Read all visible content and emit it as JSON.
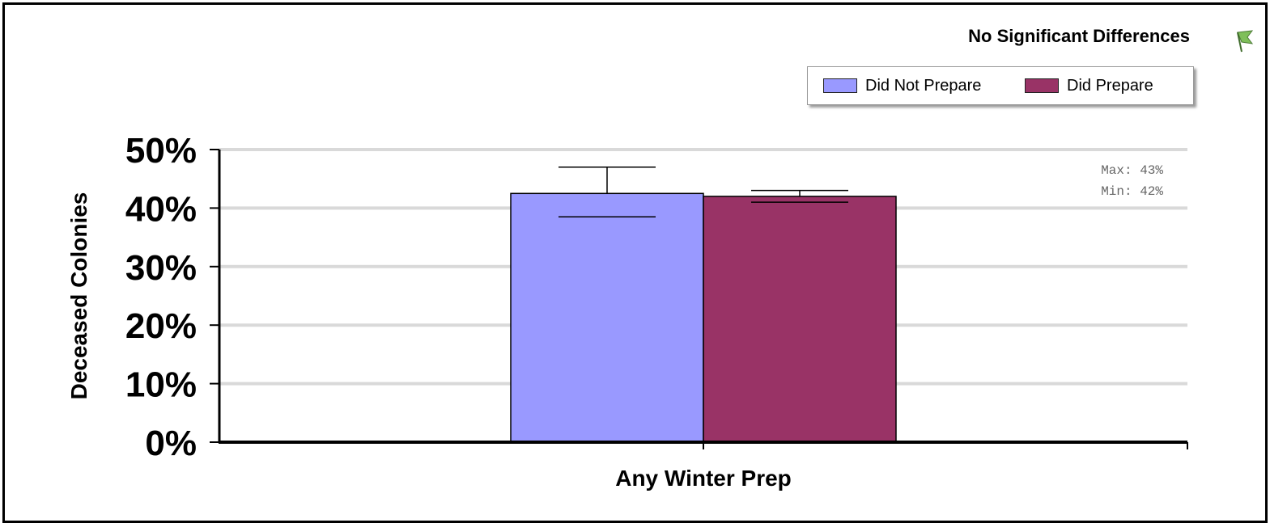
{
  "chart_data": {
    "type": "bar",
    "title": "",
    "annotation": "No Significant Differences",
    "xlabel": "",
    "ylabel": "Deceased Colonies",
    "categories": [
      "Any Winter Prep"
    ],
    "yticks": [
      "0%",
      "10%",
      "20%",
      "30%",
      "40%",
      "50%"
    ],
    "ylim": [
      0,
      50
    ],
    "grid": true,
    "legend_position": "top-right",
    "series": [
      {
        "name": "Did Not Prepare",
        "values": [
          42.5
        ],
        "error_low": [
          38.5
        ],
        "error_high": [
          47
        ],
        "color": "#9999ff"
      },
      {
        "name": "Did Prepare",
        "values": [
          42
        ],
        "error_low": [
          41
        ],
        "error_high": [
          43
        ],
        "color": "#993366"
      }
    ],
    "stats": {
      "max_label": "Max: 43%",
      "min_label": "Min: 42%"
    }
  }
}
